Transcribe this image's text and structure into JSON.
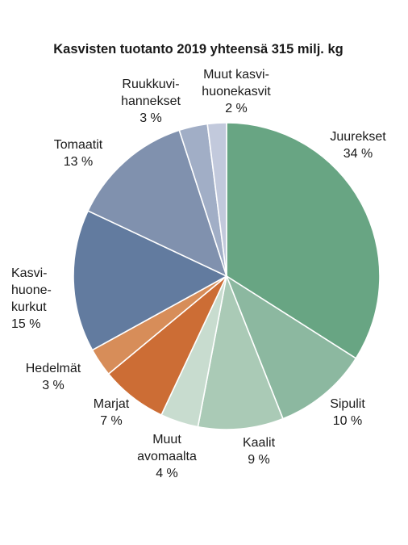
{
  "chart_data": {
    "type": "pie",
    "title": "Kasvisten tuotanto 2019 yhteensä 315 milj. kg",
    "unit": "%",
    "slices": [
      {
        "lines": [
          "Juurekset",
          "34 %"
        ],
        "value": 34,
        "color": "#68a583"
      },
      {
        "lines": [
          "Sipulit",
          "10 %"
        ],
        "value": 10,
        "color": "#8cb8a0"
      },
      {
        "lines": [
          "Kaalit",
          "9 %"
        ],
        "value": 9,
        "color": "#aacab6"
      },
      {
        "lines": [
          "Muut",
          "avomaalta",
          "4 %"
        ],
        "value": 4,
        "color": "#c8dccf"
      },
      {
        "lines": [
          "Marjat",
          "7 %"
        ],
        "value": 7,
        "color": "#cc6d35"
      },
      {
        "lines": [
          "Hedelmät",
          "3 %"
        ],
        "value": 3,
        "color": "#d78d59"
      },
      {
        "lines": [
          "Kasvi-",
          "huone-",
          "kurkut",
          "15 %"
        ],
        "value": 15,
        "color": "#627b9f"
      },
      {
        "lines": [
          "Tomaatit",
          "13 %"
        ],
        "value": 13,
        "color": "#8091ae"
      },
      {
        "lines": [
          "Ruukkuvi-",
          "hannekset",
          "3 %"
        ],
        "value": 3,
        "color": "#a1aec6"
      },
      {
        "lines": [
          "Muut kasvi-",
          "huonekasvit",
          "2 %"
        ],
        "value": 2,
        "color": "#c2c9dc"
      }
    ]
  }
}
